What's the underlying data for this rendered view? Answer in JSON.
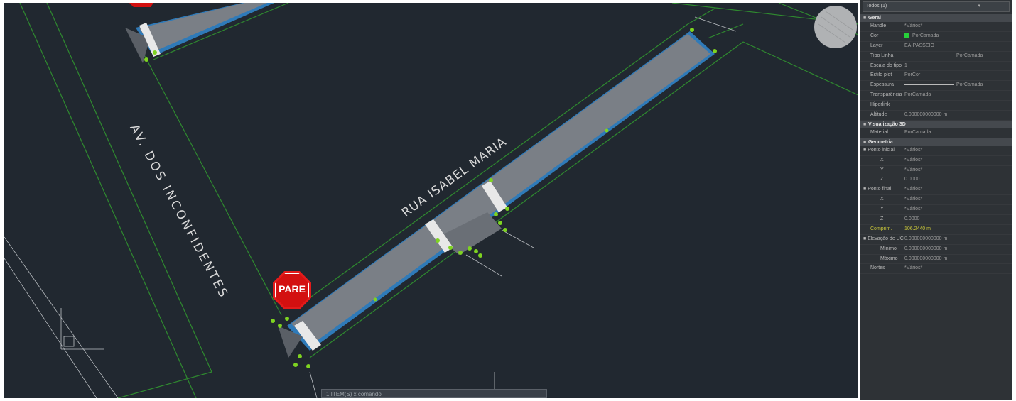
{
  "drawing": {
    "street_labels": {
      "rua": "RUA ISABEL MARIA",
      "avenida": "AV. DOS INCONFIDENTES"
    },
    "stop_sign_text": "PARE",
    "command_line": "1 ITEM(S) x  comando",
    "colors": {
      "background": "#212830",
      "road_fill": "#7a7f86",
      "road_edge": "#2f7ab8",
      "boundary_lines": "#2f8a2f",
      "grips": "#7ed321",
      "stop_sign": "#d31010"
    }
  },
  "properties": {
    "selector": "Todos (1)",
    "sections": [
      {
        "title": "Geral",
        "rows": [
          {
            "key": "Handle",
            "value": "*Vários*"
          },
          {
            "key": "Cor",
            "value": "PorCamada",
            "swatch": true
          },
          {
            "key": "Layer",
            "value": "EA-PASSEIO"
          },
          {
            "key": "Tipo Linha",
            "value": "PorCamada",
            "line": true
          },
          {
            "key": "Escala do tipo",
            "value": "1"
          },
          {
            "key": "Estilo plot",
            "value": "PorCor"
          },
          {
            "key": "Espessura",
            "value": "PorCamada",
            "line": true
          },
          {
            "key": "Transparência",
            "value": "PorCamada"
          },
          {
            "key": "Hiperlink",
            "value": ""
          },
          {
            "key": "Altitude",
            "value": "0.000000000000 m"
          }
        ]
      },
      {
        "title": "Visualização 3D",
        "rows": [
          {
            "key": "Material",
            "value": "PorCamada"
          }
        ]
      },
      {
        "title": "Geometria",
        "rows": [
          {
            "key": "Ponto inicial",
            "value": "*Vários*",
            "group": true
          },
          {
            "key": "X",
            "value": "*Vários*",
            "sub": true
          },
          {
            "key": "Y",
            "value": "*Vários*",
            "sub": true
          },
          {
            "key": "Z",
            "value": "0.0000",
            "sub": true
          },
          {
            "key": "Ponto final",
            "value": "*Vários*",
            "group": true
          },
          {
            "key": "X",
            "value": "*Vários*",
            "sub": true
          },
          {
            "key": "Y",
            "value": "*Vários*",
            "sub": true
          },
          {
            "key": "Z",
            "value": "0.0000",
            "sub": true
          },
          {
            "key": "Comprim.",
            "value": "106.2440 m",
            "highlight": true
          },
          {
            "key": "Elevação de UCS",
            "value": "0.000000000000 m",
            "group": true
          },
          {
            "key": "Mínimo",
            "value": "0.000000000000 m",
            "sub": true
          },
          {
            "key": "Máximo",
            "value": "0.000000000000 m",
            "sub": true
          },
          {
            "key": "Nortes",
            "value": "*Vários*"
          }
        ]
      }
    ]
  }
}
